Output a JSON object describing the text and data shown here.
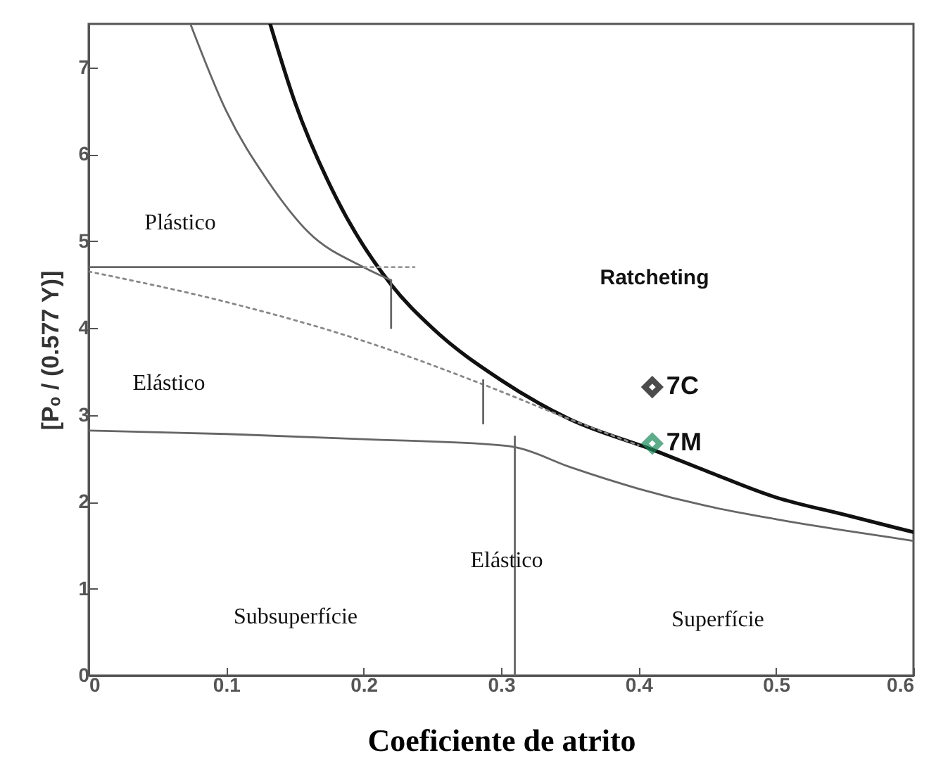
{
  "chart_data": {
    "type": "line",
    "xlabel": "Coeficiente de atrito",
    "ylabel": "[Pₒ / (0.577 Y)]",
    "xlim": [
      0,
      0.6
    ],
    "ylim": [
      0,
      7.5
    ],
    "xticks": [
      0,
      0.1,
      0.2,
      0.3,
      0.4,
      0.5,
      0.6
    ],
    "yticks": [
      0,
      1,
      2,
      3,
      4,
      5,
      6,
      7
    ],
    "series": [
      {
        "color": "#111111",
        "x": [
          0.132,
          0.15,
          0.18,
          0.22,
          0.25,
          0.3,
          0.35,
          0.41,
          0.45,
          0.5,
          0.55,
          0.6
        ],
        "values": [
          7.5,
          6.6,
          5.5,
          4.5,
          4.0,
          3.4,
          2.95,
          2.6,
          2.35,
          2.05,
          1.85,
          1.65
        ]
      },
      {
        "color": "#666666",
        "x": [
          0.074,
          0.1,
          0.13,
          0.16,
          0.2,
          0.22
        ],
        "values": [
          7.5,
          6.5,
          5.7,
          5.1,
          4.7,
          4.55
        ]
      },
      {
        "color": "#666666",
        "x": [
          0,
          0.1,
          0.2,
          0.3,
          0.31,
          0.35,
          0.4,
          0.45,
          0.5,
          0.55,
          0.6
        ],
        "values": [
          2.82,
          2.78,
          2.72,
          2.65,
          2.63,
          2.4,
          2.15,
          1.95,
          1.8,
          1.67,
          1.55
        ]
      },
      {
        "color": "#888888",
        "line_style": "dotted",
        "x": [
          0,
          0.1,
          0.2,
          0.287,
          0.35,
          0.4
        ],
        "values": [
          4.65,
          4.3,
          3.85,
          3.35,
          2.95,
          2.65
        ]
      },
      {
        "color": "#666666",
        "x": [
          0,
          0.2
        ],
        "values": [
          4.7,
          4.7
        ]
      },
      {
        "color": "#999999",
        "line_style": "dotted",
        "x": [
          0.2,
          0.237
        ],
        "values": [
          4.7,
          4.7
        ]
      },
      {
        "color": "#666666",
        "x": [
          0.22,
          0.22
        ],
        "values": [
          4.0,
          4.55
        ]
      },
      {
        "color": "#666666",
        "x": [
          0.287,
          0.287
        ],
        "values": [
          2.9,
          3.4
        ]
      },
      {
        "color": "#666666",
        "x": [
          0.31,
          0.31
        ],
        "values": [
          0,
          2.75
        ]
      },
      {
        "type": "scatter",
        "name": "7C",
        "color": "#000000",
        "marker": "diamond",
        "x": [
          0.41
        ],
        "values": [
          3.32
        ]
      },
      {
        "type": "scatter",
        "name": "7M",
        "color": "#1a8a5a",
        "marker": "diamond",
        "x": [
          0.41
        ],
        "values": [
          2.67
        ]
      }
    ],
    "annotations": [
      "Plástico",
      "Ratcheting",
      "Elástico",
      "Elástico",
      "Subsuperfície",
      "Superfície"
    ]
  }
}
